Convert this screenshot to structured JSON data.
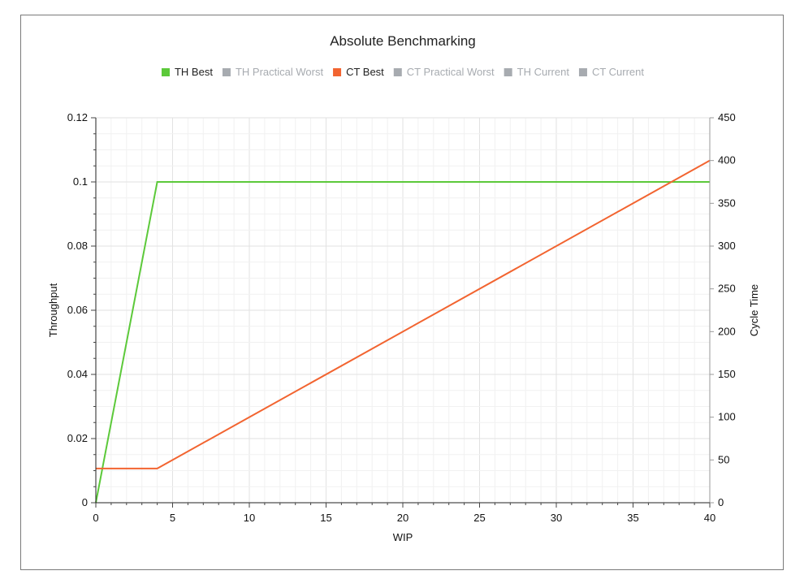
{
  "chart_data": {
    "type": "line",
    "title": "Absolute Benchmarking",
    "xlabel": "WIP",
    "ylabel_left": "Throughput",
    "ylabel_right": "Cycle Time",
    "xlim": [
      0,
      40
    ],
    "ylim_left": [
      0,
      0.12
    ],
    "ylim_right": [
      0,
      450
    ],
    "x_ticks": [
      0,
      5,
      10,
      15,
      20,
      25,
      30,
      35,
      40
    ],
    "y_left_ticks": [
      0,
      0.02,
      0.04,
      0.06,
      0.08,
      0.1,
      0.12
    ],
    "y_right_ticks": [
      0,
      50,
      100,
      150,
      200,
      250,
      300,
      350,
      400,
      450
    ],
    "grid": true,
    "legend_position": "top",
    "legend": [
      {
        "name": "TH Best",
        "color": "#5cc93a",
        "active": true
      },
      {
        "name": "TH Practical Worst",
        "color": "#a7abb0",
        "active": false
      },
      {
        "name": "CT Best",
        "color": "#f26430",
        "active": true
      },
      {
        "name": "CT Practical Worst",
        "color": "#a7abb0",
        "active": false
      },
      {
        "name": "TH Current",
        "color": "#a7abb0",
        "active": false
      },
      {
        "name": "CT Current",
        "color": "#a7abb0",
        "active": false
      }
    ],
    "series": [
      {
        "name": "TH Best",
        "axis": "left",
        "color": "#5cc93a",
        "x": [
          0,
          4,
          40
        ],
        "y": [
          0,
          0.1,
          0.1
        ]
      },
      {
        "name": "CT Best",
        "axis": "right",
        "color": "#f26430",
        "x": [
          0,
          4,
          40
        ],
        "y": [
          40,
          40,
          400
        ]
      }
    ]
  }
}
